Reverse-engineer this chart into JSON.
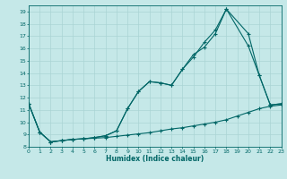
{
  "xlabel": "Humidex (Indice chaleur)",
  "bg_color": "#c5e8e8",
  "grid_color": "#aad4d4",
  "line_color": "#006666",
  "xlim": [
    0,
    23
  ],
  "ylim": [
    8,
    19.5
  ],
  "xticks": [
    0,
    1,
    2,
    3,
    4,
    5,
    6,
    7,
    8,
    9,
    10,
    11,
    12,
    13,
    14,
    15,
    16,
    17,
    18,
    19,
    20,
    21,
    22,
    23
  ],
  "yticks": [
    8,
    9,
    10,
    11,
    12,
    13,
    14,
    15,
    16,
    17,
    18,
    19
  ],
  "line1_x": [
    0,
    1,
    2,
    3,
    4,
    5,
    6,
    7,
    8,
    9,
    10,
    11,
    12,
    13,
    14,
    15,
    16,
    17,
    18,
    19,
    20,
    21,
    22,
    23
  ],
  "line1_y": [
    11.5,
    9.2,
    8.4,
    8.5,
    8.6,
    8.65,
    8.7,
    8.75,
    8.85,
    8.95,
    9.05,
    9.15,
    9.3,
    9.45,
    9.55,
    9.7,
    9.85,
    10.0,
    10.2,
    10.5,
    10.8,
    11.1,
    11.3,
    11.4
  ],
  "line2_x": [
    0,
    1,
    2,
    3,
    4,
    5,
    6,
    7,
    8,
    9,
    10,
    11,
    12,
    13,
    14,
    15,
    16,
    17,
    18,
    20,
    21,
    22,
    23
  ],
  "line2_y": [
    11.5,
    9.2,
    8.4,
    8.5,
    8.6,
    8.65,
    8.75,
    8.9,
    9.3,
    11.1,
    12.5,
    13.3,
    13.2,
    13.0,
    14.3,
    15.3,
    16.5,
    17.5,
    19.2,
    16.2,
    13.8,
    11.4,
    11.5
  ],
  "line3_x": [
    0,
    1,
    2,
    3,
    4,
    5,
    6,
    7,
    8,
    9,
    10,
    11,
    12,
    13,
    14,
    15,
    16,
    17,
    18,
    20,
    21,
    22,
    23
  ],
  "line3_y": [
    11.5,
    9.2,
    8.4,
    8.5,
    8.6,
    8.65,
    8.75,
    8.9,
    9.3,
    11.1,
    12.5,
    13.3,
    13.2,
    13.0,
    14.3,
    15.5,
    16.1,
    17.2,
    19.2,
    17.2,
    13.8,
    11.4,
    11.5
  ]
}
